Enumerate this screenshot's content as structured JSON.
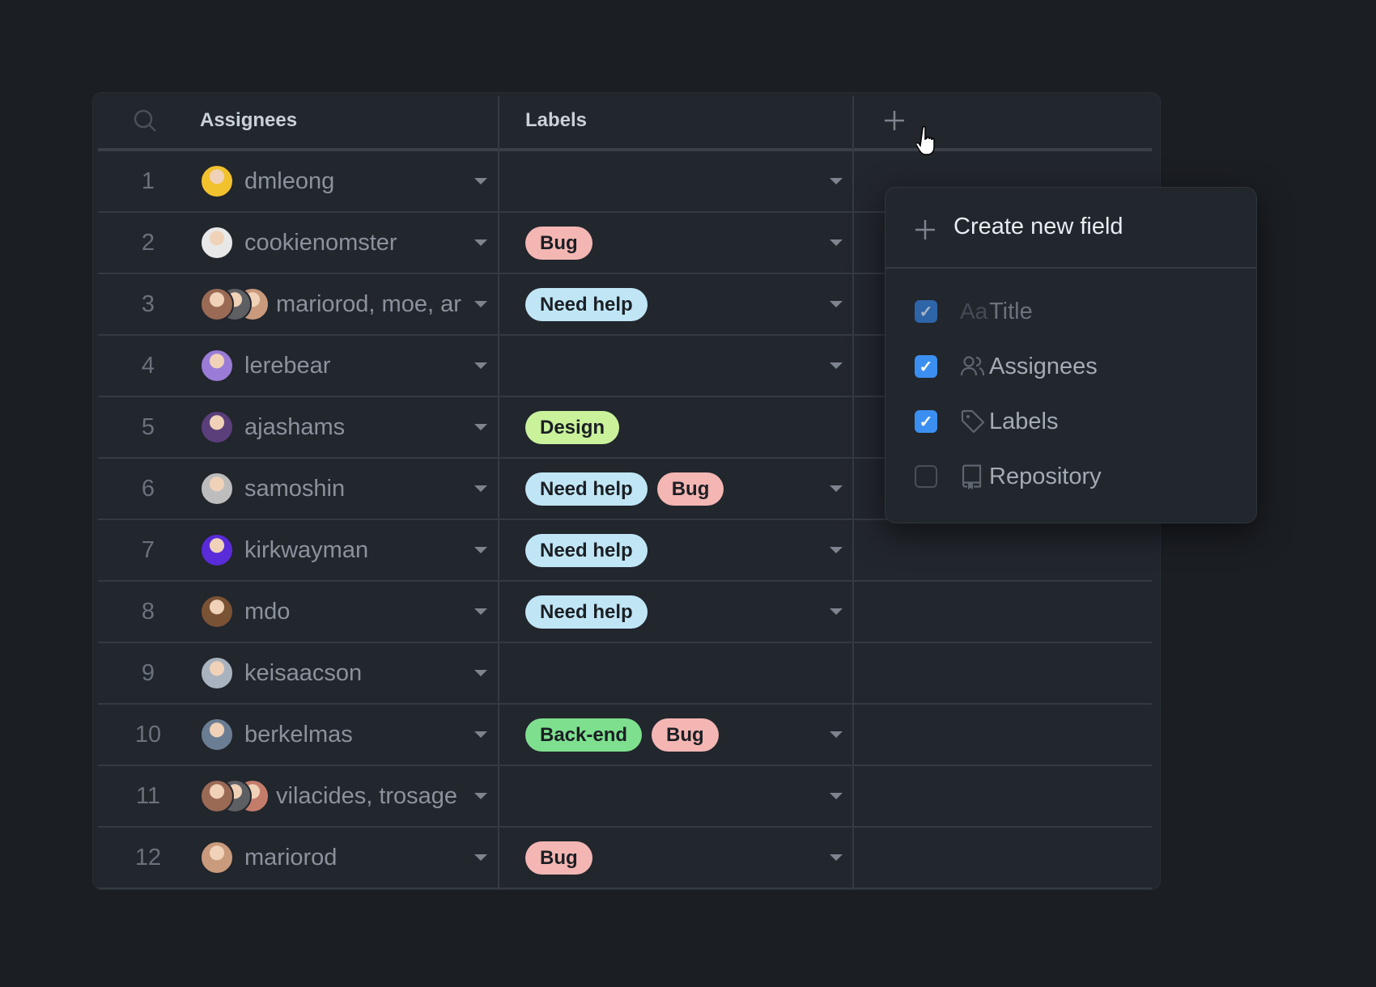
{
  "header": {
    "columns": [
      "Assignees",
      "Labels"
    ],
    "search_icon": "search-icon",
    "add_column_icon": "plus-icon"
  },
  "colors": {
    "Bug": "#f4b6b3",
    "Need help": "#c0e6f6",
    "Design": "#c9f29b",
    "Back-end": "#7ee08e",
    "checkbox": "#3b8ff0"
  },
  "rows": [
    {
      "index": "1",
      "assignees": "dmleong",
      "avatars": [
        "#f2c12e"
      ],
      "labels": []
    },
    {
      "index": "2",
      "assignees": "cookienomster",
      "avatars": [
        "#e8e8e8"
      ],
      "labels": [
        "Bug"
      ]
    },
    {
      "index": "3",
      "assignees": "mariorod, moe, ar",
      "avatars": [
        "#9a6a55",
        "#5d5f63",
        "#c99a7c"
      ],
      "labels": [
        "Need help"
      ]
    },
    {
      "index": "4",
      "assignees": "lerebear",
      "avatars": [
        "#9a7bd6"
      ],
      "labels": []
    },
    {
      "index": "5",
      "assignees": "ajashams",
      "avatars": [
        "#5a3f7a"
      ],
      "labels": [
        "Design"
      ]
    },
    {
      "index": "6",
      "assignees": "samoshin",
      "avatars": [
        "#bdbdbd"
      ],
      "labels": [
        "Need help",
        "Bug"
      ]
    },
    {
      "index": "7",
      "assignees": "kirkwayman",
      "avatars": [
        "#5a2bd8"
      ],
      "labels": [
        "Need help"
      ]
    },
    {
      "index": "8",
      "assignees": "mdo",
      "avatars": [
        "#7a5234"
      ],
      "labels": [
        "Need help"
      ]
    },
    {
      "index": "9",
      "assignees": "keisaacson",
      "avatars": [
        "#a9b3bf"
      ],
      "labels": []
    },
    {
      "index": "10",
      "assignees": "berkelmas",
      "avatars": [
        "#6b7d92"
      ],
      "labels": [
        "Back-end",
        "Bug"
      ]
    },
    {
      "index": "11",
      "assignees": "vilacides, trosage",
      "avatars": [
        "#9a6a55",
        "#5d5f63",
        "#c47c6a"
      ],
      "labels": []
    },
    {
      "index": "12",
      "assignees": "mariorod",
      "avatars": [
        "#c99a7c"
      ],
      "labels": [
        "Bug"
      ]
    }
  ],
  "popup": {
    "create_label": "Create new field",
    "fields": [
      {
        "label": "Title",
        "icon": "text-icon",
        "glyph": "Aa",
        "checked": true,
        "disabled": true
      },
      {
        "label": "Assignees",
        "icon": "people-icon",
        "glyph": "",
        "checked": true,
        "disabled": false
      },
      {
        "label": "Labels",
        "icon": "tag-icon",
        "glyph": "",
        "checked": true,
        "disabled": false
      },
      {
        "label": "Repository",
        "icon": "repo-icon",
        "glyph": "",
        "checked": false,
        "disabled": false
      }
    ]
  }
}
